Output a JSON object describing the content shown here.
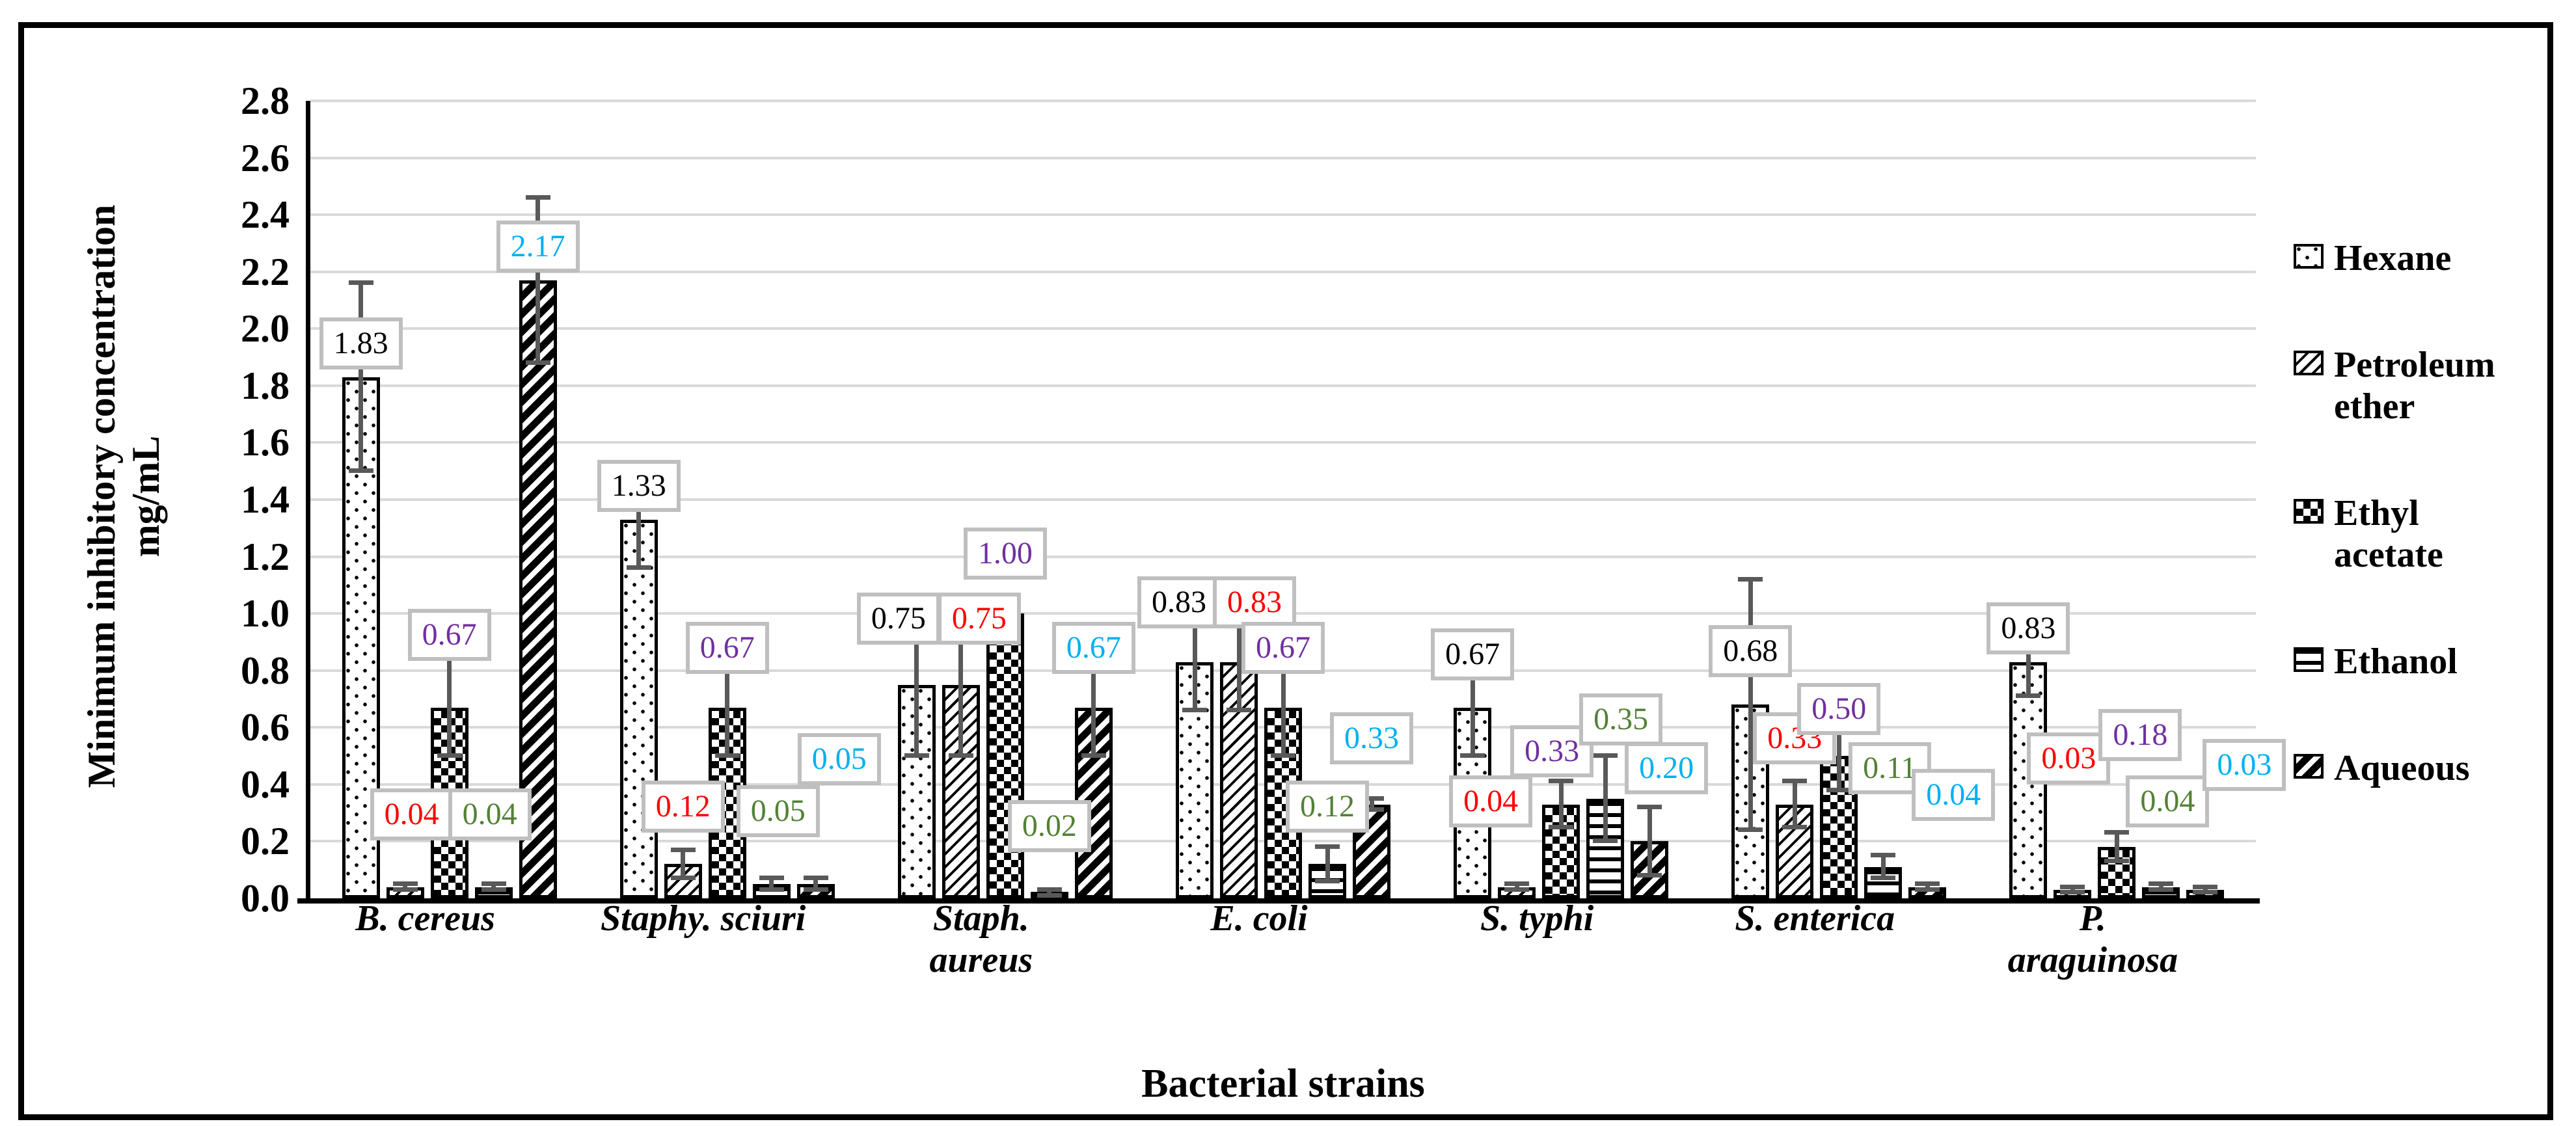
{
  "chart_data": {
    "type": "bar",
    "title": "",
    "xlabel": "Bacterial strains",
    "ylabel": "Minimum inhibitory concentration",
    "ylabel_unit": "mg/mL",
    "ylim": [
      0,
      2.8
    ],
    "ytick_step": 0.2,
    "ytick_format_decimals": 1,
    "grid": true,
    "legend_position": "right",
    "categories": [
      "B. cereus",
      "Staphy. sciuri",
      "Staph.\naureus",
      "E. coli",
      "S. typhi",
      "S. enterica",
      "P.\naraguinosa"
    ],
    "series": [
      {
        "name": "Hexane",
        "pattern": "dots",
        "label_color": "#000000",
        "values": [
          1.83,
          1.33,
          0.75,
          0.83,
          0.67,
          0.68,
          0.83
        ],
        "errors": [
          0.33,
          0.17,
          0.25,
          0.17,
          0.17,
          0.44,
          0.12
        ]
      },
      {
        "name": "Petroleum ether",
        "pattern": "thin-diag",
        "label_color": "#FF0000",
        "values": [
          0.04,
          0.12,
          0.75,
          0.83,
          0.04,
          0.33,
          0.03
        ],
        "errors": [
          0.01,
          0.05,
          0.25,
          0.17,
          0.01,
          0.08,
          0.01
        ]
      },
      {
        "name": "Ethyl acetate",
        "pattern": "check",
        "label_color": "#7030A0",
        "values": [
          0.67,
          0.67,
          1.0,
          0.67,
          0.33,
          0.5,
          0.18
        ],
        "errors": [
          0.17,
          0.17,
          0.02,
          0.17,
          0.08,
          0.12,
          0.05
        ]
      },
      {
        "name": "Ethanol",
        "pattern": "hlines",
        "label_color": "#538135",
        "values": [
          0.04,
          0.05,
          0.02,
          0.12,
          0.35,
          0.11,
          0.04
        ],
        "errors": [
          0.01,
          0.02,
          0.01,
          0.06,
          0.15,
          0.04,
          0.01
        ]
      },
      {
        "name": "Aqueous",
        "pattern": "thick-diag",
        "label_color": "#00B0F0",
        "values": [
          2.17,
          0.05,
          0.67,
          0.33,
          0.2,
          0.04,
          0.03
        ],
        "errors": [
          0.29,
          0.02,
          0.17,
          0.02,
          0.12,
          0.01,
          0.01
        ]
      }
    ]
  },
  "colors": {
    "gridline": "#D9D9D9",
    "error_bar": "#595959",
    "label_box_border": "#BFBFBF",
    "axis": "#000000",
    "background": "#FFFFFF"
  }
}
